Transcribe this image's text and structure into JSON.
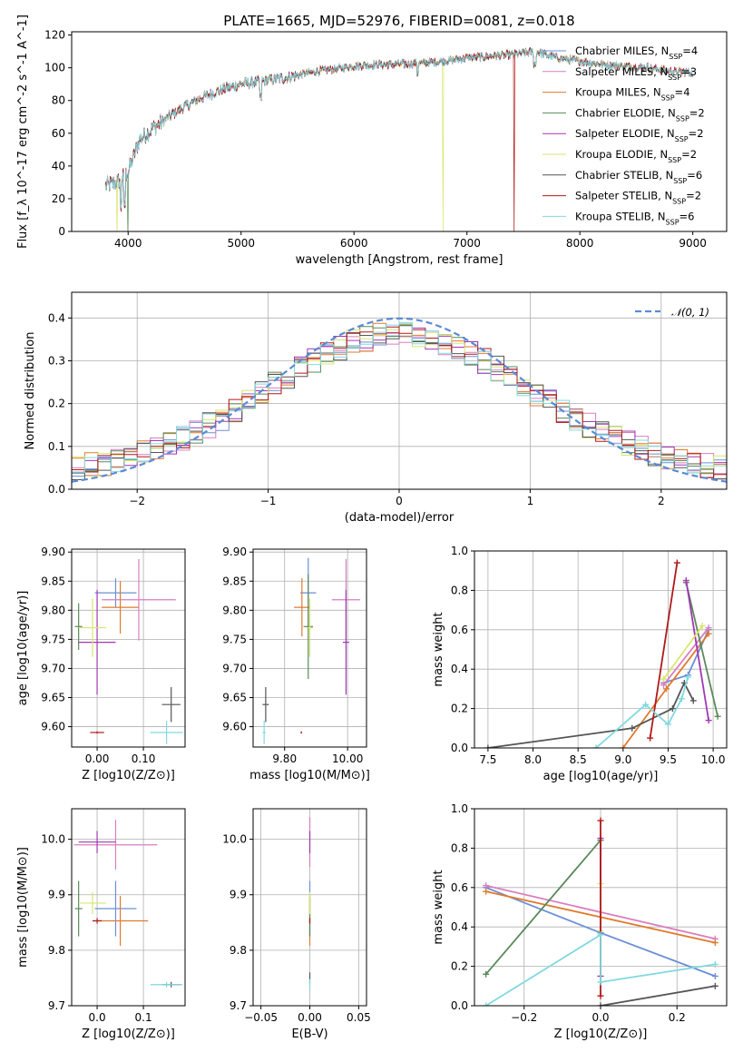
{
  "figure": {
    "title": "PLATE=1665, MJD=52976, FIBERID=0081, z=0.018"
  },
  "models": [
    {
      "name": "Chabrier MILES",
      "nssp": "4",
      "color": "#6b8fd6"
    },
    {
      "name": "Salpeter MILES",
      "nssp": "3",
      "color": "#d97ec0"
    },
    {
      "name": "Kroupa MILES",
      "nssp": "4",
      "color": "#e07a2d"
    },
    {
      "name": "Chabrier ELODIE",
      "nssp": "2",
      "color": "#5a8a5a"
    },
    {
      "name": "Salpeter ELODIE",
      "nssp": "2",
      "color": "#a238b3"
    },
    {
      "name": "Kroupa ELODIE",
      "nssp": "2",
      "color": "#d9e66b"
    },
    {
      "name": "Chabrier STELIB",
      "nssp": "6",
      "color": "#555555"
    },
    {
      "name": "Salpeter STELIB",
      "nssp": "2",
      "color": "#b01a1a"
    },
    {
      "name": "Kroupa STELIB",
      "nssp": "6",
      "color": "#80d9e0"
    }
  ],
  "chart_data": [
    {
      "id": "spectrum",
      "type": "line",
      "xlabel": "wavelength [Angstrom, rest frame]",
      "ylabel": "Flux [f_λ 10^-17 erg cm^-2 s^-1 A^-1]",
      "xlim": [
        3500,
        9300
      ],
      "ylim": [
        0,
        122
      ],
      "xticks": [
        4000,
        5000,
        6000,
        7000,
        8000,
        9000
      ],
      "yticks": [
        0,
        20,
        40,
        60,
        80,
        100,
        120
      ],
      "grid": false,
      "legend": "top-right",
      "continuum": {
        "x": [
          3800,
          3900,
          4000,
          4100,
          4200,
          4400,
          4600,
          4800,
          5000,
          5200,
          5400,
          5600,
          5800,
          6000,
          6200,
          6400,
          6600,
          6800,
          7000,
          7200,
          7400,
          7600,
          7800,
          8000,
          8200,
          8400,
          8600,
          8800,
          9000
        ],
        "y": [
          28,
          30,
          36,
          56,
          62,
          72,
          80,
          86,
          90,
          92,
          94,
          97,
          99,
          101,
          102,
          102,
          103,
          104,
          106,
          107,
          108,
          110,
          106,
          104,
          102,
          101,
          100,
          98,
          97
        ]
      },
      "dropouts": [
        {
          "x": 3900,
          "series": "Kroupa ELODIE"
        },
        {
          "x": 4000,
          "series": "Chabrier ELODIE"
        },
        {
          "x": 6790,
          "series": "Kroupa ELODIE"
        },
        {
          "x": 7420,
          "series": "Salpeter STELIB"
        }
      ]
    },
    {
      "id": "residuals",
      "type": "line",
      "xlabel": "(data-model)/error",
      "ylabel": "Normed distribution",
      "xlim": [
        -2.5,
        2.5
      ],
      "ylim": [
        0,
        0.46
      ],
      "xticks": [
        -2,
        -1,
        0,
        1,
        2
      ],
      "yticks": [
        0.0,
        0.1,
        0.2,
        0.3,
        0.4
      ],
      "grid": true,
      "legend": "top-right",
      "reference_label": "𝒩(0, 1)",
      "bins": [
        -2.5,
        -2.4,
        -2.3,
        -2.2,
        -2.1,
        -2.0,
        -1.9,
        -1.8,
        -1.7,
        -1.6,
        -1.5,
        -1.4,
        -1.3,
        -1.2,
        -1.1,
        -1.0,
        -0.9,
        -0.8,
        -0.7,
        -0.6,
        -0.5,
        -0.4,
        -0.3,
        -0.2,
        -0.1,
        0.0,
        0.1,
        0.2,
        0.3,
        0.4,
        0.5,
        0.6,
        0.7,
        0.8,
        0.9,
        1.0,
        1.1,
        1.2,
        1.3,
        1.4,
        1.5,
        1.6,
        1.7,
        1.8,
        1.9,
        2.0,
        2.1,
        2.2,
        2.3,
        2.4,
        2.5
      ]
    },
    {
      "id": "age-vs-Z",
      "type": "scatter",
      "xlabel": "Z [log10(Z/Z⊙)]",
      "ylabel": "age [log10(age/yr)]",
      "xlim": [
        -0.055,
        0.19
      ],
      "ylim": [
        9.565,
        9.905
      ],
      "xticks": [
        0.0,
        0.1
      ],
      "yticks": [
        9.6,
        9.65,
        9.7,
        9.75,
        9.8,
        9.85,
        9.9
      ],
      "grid": true,
      "points": [
        {
          "series": "Chabrier MILES",
          "x": 0.04,
          "y": 9.83,
          "xerr": 0.045,
          "yerr": 0.025
        },
        {
          "series": "Salpeter MILES",
          "x": 0.09,
          "y": 9.818,
          "xerr": 0.08,
          "yerr": 0.07
        },
        {
          "series": "Kroupa MILES",
          "x": 0.05,
          "y": 9.805,
          "xerr": 0.04,
          "yerr": 0.045
        },
        {
          "series": "Chabrier ELODIE",
          "x": -0.04,
          "y": 9.772,
          "xerr": 0.008,
          "yerr": 0.04
        },
        {
          "series": "Salpeter ELODIE",
          "x": 0.0,
          "y": 9.745,
          "xerr": 0.04,
          "yerr": 0.09
        },
        {
          "series": "Kroupa ELODIE",
          "x": -0.01,
          "y": 9.77,
          "xerr": 0.03,
          "yerr": 0.05
        },
        {
          "series": "Chabrier STELIB",
          "x": 0.16,
          "y": 9.638,
          "xerr": 0.02,
          "yerr": 0.03
        },
        {
          "series": "Salpeter STELIB",
          "x": 0.0,
          "y": 9.59,
          "xerr": 0.015,
          "yerr": 0.002
        },
        {
          "series": "Kroupa STELIB",
          "x": 0.15,
          "y": 9.59,
          "xerr": 0.035,
          "yerr": 0.02
        }
      ]
    },
    {
      "id": "age-vs-mass",
      "type": "scatter",
      "xlabel": "mass [log10(M/M⊙)]",
      "ylabel": "",
      "xlim": [
        9.7,
        10.06
      ],
      "ylim": [
        9.565,
        9.905
      ],
      "xticks": [
        9.8,
        10.0
      ],
      "yticks": [
        9.6,
        9.65,
        9.7,
        9.75,
        9.8,
        9.85,
        9.9
      ],
      "grid": true,
      "points": [
        {
          "series": "Chabrier MILES",
          "x": 9.875,
          "y": 9.83,
          "xerr": 0.025,
          "yerr": 0.06
        },
        {
          "series": "Salpeter MILES",
          "x": 9.995,
          "y": 9.818,
          "xerr": 0.045,
          "yerr": 0.07
        },
        {
          "series": "Kroupa MILES",
          "x": 9.855,
          "y": 9.805,
          "xerr": 0.025,
          "yerr": 0.05
        },
        {
          "series": "Chabrier ELODIE",
          "x": 9.875,
          "y": 9.772,
          "xerr": 0.015,
          "yerr": 0.09
        },
        {
          "series": "Salpeter ELODIE",
          "x": 9.995,
          "y": 9.745,
          "xerr": 0.01,
          "yerr": 0.09
        },
        {
          "series": "Kroupa ELODIE",
          "x": 9.88,
          "y": 9.77,
          "xerr": 0.01,
          "yerr": 0.05
        },
        {
          "series": "Chabrier STELIB",
          "x": 9.74,
          "y": 9.638,
          "xerr": 0.01,
          "yerr": 0.03
        },
        {
          "series": "Salpeter STELIB",
          "x": 9.853,
          "y": 9.59,
          "xerr": 0.002,
          "yerr": 0.002
        },
        {
          "series": "Kroupa STELIB",
          "x": 9.735,
          "y": 9.59,
          "xerr": 0.005,
          "yerr": 0.02
        }
      ]
    },
    {
      "id": "weight-vs-age",
      "type": "line",
      "xlabel": "age [log10(age/yr)]",
      "ylabel": "mass weight",
      "xlim": [
        7.35,
        10.15
      ],
      "ylim": [
        0,
        1
      ],
      "xticks": [
        7.5,
        8.0,
        8.5,
        9.0,
        9.5,
        10.0
      ],
      "yticks": [
        0.0,
        0.2,
        0.4,
        0.6,
        0.8,
        1.0
      ],
      "grid": true,
      "series": [
        {
          "name": "Chabrier MILES",
          "x": [
            9.45,
            9.72,
            9.95
          ],
          "y": [
            0.33,
            0.37,
            0.6
          ]
        },
        {
          "name": "Salpeter MILES",
          "x": [
            9.45,
            9.95
          ],
          "y": [
            0.32,
            0.61
          ]
        },
        {
          "name": "Kroupa MILES",
          "x": [
            9.0,
            9.48,
            9.95
          ],
          "y": [
            0.0,
            0.3,
            0.58
          ]
        },
        {
          "name": "Chabrier ELODIE",
          "x": [
            9.7,
            10.05
          ],
          "y": [
            0.84,
            0.16
          ]
        },
        {
          "name": "Salpeter ELODIE",
          "x": [
            9.7,
            9.95
          ],
          "y": [
            0.85,
            0.14
          ]
        },
        {
          "name": "Kroupa ELODIE",
          "x": [
            9.45,
            9.88
          ],
          "y": [
            0.35,
            0.62
          ]
        },
        {
          "name": "Chabrier STELIB",
          "x": [
            7.5,
            9.1,
            9.55,
            9.68,
            9.78
          ],
          "y": [
            0.0,
            0.1,
            0.2,
            0.33,
            0.24
          ]
        },
        {
          "name": "Salpeter STELIB",
          "x": [
            9.3,
            9.6
          ],
          "y": [
            0.05,
            0.94
          ]
        },
        {
          "name": "Kroupa STELIB",
          "x": [
            8.7,
            9.25,
            9.5,
            9.65,
            9.72
          ],
          "y": [
            0.0,
            0.22,
            0.12,
            0.25,
            0.36
          ]
        }
      ]
    },
    {
      "id": "mass-vs-Z",
      "type": "scatter",
      "xlabel": "Z [log10(Z/Z⊙)]",
      "ylabel": "mass [log10(M/M⊙)]",
      "xlim": [
        -0.055,
        0.19
      ],
      "ylim": [
        9.7,
        10.055
      ],
      "xticks": [
        0.0,
        0.1
      ],
      "yticks": [
        9.7,
        9.8,
        9.9,
        10.0
      ],
      "grid": true,
      "points": [
        {
          "series": "Chabrier MILES",
          "x": 0.04,
          "y": 9.875,
          "xerr": 0.045,
          "yerr": 0.05
        },
        {
          "series": "Salpeter MILES",
          "x": 0.04,
          "y": 9.99,
          "xerr": 0.09,
          "yerr": 0.045
        },
        {
          "series": "Kroupa MILES",
          "x": 0.05,
          "y": 9.853,
          "xerr": 0.06,
          "yerr": 0.045
        },
        {
          "series": "Chabrier ELODIE",
          "x": -0.04,
          "y": 9.875,
          "xerr": 0.008,
          "yerr": 0.05
        },
        {
          "series": "Salpeter ELODIE",
          "x": 0.0,
          "y": 9.995,
          "xerr": 0.04,
          "yerr": 0.02
        },
        {
          "series": "Kroupa ELODIE",
          "x": -0.01,
          "y": 9.885,
          "xerr": 0.03,
          "yerr": 0.02
        },
        {
          "series": "Chabrier STELIB",
          "x": 0.16,
          "y": 9.738,
          "xerr": 0.02,
          "yerr": 0.005
        },
        {
          "series": "Salpeter STELIB",
          "x": 0.0,
          "y": 9.853,
          "xerr": 0.01,
          "yerr": 0.005
        },
        {
          "series": "Kroupa STELIB",
          "x": 0.15,
          "y": 9.738,
          "xerr": 0.035,
          "yerr": 0.005
        }
      ]
    },
    {
      "id": "mass-vs-EBV",
      "type": "scatter",
      "xlabel": "E(B-V)",
      "ylabel": "",
      "xlim": [
        -0.058,
        0.058
      ],
      "ylim": [
        9.7,
        10.055
      ],
      "xticks": [
        -0.05,
        0.0,
        0.05
      ],
      "yticks": [
        9.7,
        9.8,
        9.9,
        10.0
      ],
      "grid": true,
      "points": [
        {
          "series": "Chabrier MILES",
          "x": 0.0,
          "y": 9.875,
          "xerr": 0.0,
          "yerr": 0.05
        },
        {
          "series": "Salpeter MILES",
          "x": 0.0,
          "y": 9.995,
          "xerr": 0.0,
          "yerr": 0.045
        },
        {
          "series": "Kroupa MILES",
          "x": 0.0,
          "y": 9.853,
          "xerr": 0.0,
          "yerr": 0.045
        },
        {
          "series": "Chabrier ELODIE",
          "x": 0.0,
          "y": 9.86,
          "xerr": 0.0,
          "yerr": 0.035
        },
        {
          "series": "Salpeter ELODIE",
          "x": 0.0,
          "y": 9.995,
          "xerr": 0.0,
          "yerr": 0.02
        },
        {
          "series": "Kroupa ELODIE",
          "x": 0.0,
          "y": 9.885,
          "xerr": 0.0,
          "yerr": 0.02
        },
        {
          "series": "Chabrier STELIB",
          "x": 0.0,
          "y": 9.75,
          "xerr": 0.0,
          "yerr": 0.01
        },
        {
          "series": "Salpeter STELIB",
          "x": 0.0,
          "y": 9.853,
          "xerr": 0.0,
          "yerr": 0.005
        },
        {
          "series": "Kroupa STELIB",
          "x": 0.0,
          "y": 9.738,
          "xerr": 0.0,
          "yerr": 0.01
        }
      ]
    },
    {
      "id": "weight-vs-Z",
      "type": "line",
      "xlabel": "Z [log10(Z/Z⊙)]",
      "ylabel": "mass weight",
      "xlim": [
        -0.33,
        0.33
      ],
      "ylim": [
        0,
        1
      ],
      "xticks": [
        -0.2,
        0.0,
        0.2
      ],
      "yticks": [
        0.0,
        0.2,
        0.4,
        0.6,
        0.8,
        1.0
      ],
      "grid": true,
      "series": [
        {
          "name": "Chabrier MILES",
          "x": [
            -0.3,
            0.0,
            0.3
          ],
          "y": [
            0.6,
            0.37,
            0.15
          ]
        },
        {
          "name": "Salpeter MILES",
          "x": [
            -0.3,
            0.3
          ],
          "y": [
            0.61,
            0.34
          ]
        },
        {
          "name": "Kroupa MILES",
          "x": [
            -0.3,
            0.3
          ],
          "y": [
            0.58,
            0.32
          ]
        },
        {
          "name": "Chabrier ELODIE",
          "x": [
            -0.3,
            0.0
          ],
          "y": [
            0.16,
            0.84
          ]
        },
        {
          "name": "Salpeter ELODIE",
          "x": [
            0.0,
            0.0
          ],
          "y": [
            0.15,
            0.85
          ]
        },
        {
          "name": "Kroupa ELODIE",
          "x": [
            0.0,
            0.0
          ],
          "y": [
            0.38,
            0.62
          ]
        },
        {
          "name": "Chabrier STELIB",
          "x": [
            0.0,
            0.3
          ],
          "y": [
            0.0,
            0.1
          ]
        },
        {
          "name": "Salpeter STELIB",
          "x": [
            0.0,
            0.0
          ],
          "y": [
            0.05,
            0.94
          ]
        },
        {
          "name": "Kroupa STELIB",
          "x": [
            -0.3,
            0.0,
            0.0,
            0.3
          ],
          "y": [
            0.0,
            0.36,
            0.12,
            0.21
          ]
        }
      ]
    }
  ]
}
